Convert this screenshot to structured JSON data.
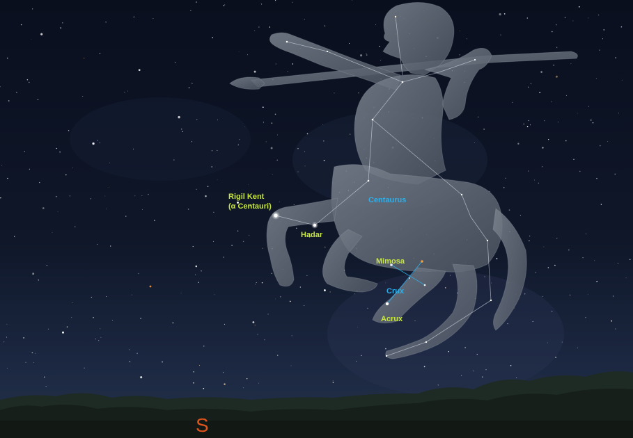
{
  "labels": {
    "rigil_kent_line1": "Rigil Kent",
    "rigil_kent_line2": "(α Centauri)",
    "hadar": "Hadar",
    "centaurus": "Centaurus",
    "mimosa": "Mimosa",
    "crux": "Crux",
    "acrux": "Acrux"
  },
  "compass": {
    "direction": "S"
  },
  "colors": {
    "sky_top": "#0a0f1e",
    "star_label": "#c8e63c",
    "constellation_label": "#2eaee8",
    "compass": "#e0541c",
    "figure": "#5a6270",
    "constellation_line": "#dfe6f0"
  }
}
